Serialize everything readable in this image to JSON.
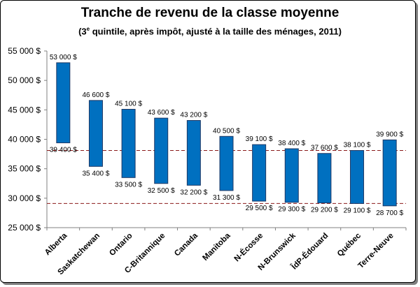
{
  "chart_data": {
    "type": "bar",
    "subtype": "floating-range",
    "title": "Tranche de revenu de la classe moyenne",
    "subtitle": {
      "prefix": "(3",
      "superscript": "e",
      "suffix": " quintile, après impôt, ajusté à la taille des ménages, 2011)"
    },
    "categories": [
      "Alberta",
      "Saskatchewan",
      "Ontario",
      "C-Britannique",
      "Canada",
      "Manitoba",
      "N-Écosse",
      "N-Brunswick",
      "ÎdP-Édouard",
      "Québec",
      "Terre-Neuve"
    ],
    "series": [
      {
        "low": [
          39400,
          35400,
          33500,
          32500,
          32200,
          31300,
          29500,
          29300,
          29200,
          29100,
          28700
        ],
        "high": [
          53000,
          46600,
          45100,
          43600,
          43200,
          40500,
          39100,
          38400,
          37600,
          38100,
          39900
        ]
      }
    ],
    "low_labels": [
      "39 400 $",
      "35 400 $",
      "33 500 $",
      "32 500 $",
      "32 200 $",
      "31 300 $",
      "29 500 $",
      "29 300 $",
      "29 200 $",
      "29 100 $",
      "28 700 $"
    ],
    "high_labels": [
      "53 000 $",
      "46 600 $",
      "45 100 $",
      "43 600 $",
      "43 200 $",
      "40 500 $",
      "39 100 $",
      "38 400 $",
      "37 600 $",
      "38 100 $",
      "39 900 $"
    ],
    "reference_lines": [
      38100,
      29100
    ],
    "ylim": [
      25000,
      55000
    ],
    "yticks": [
      25000,
      30000,
      35000,
      40000,
      45000,
      50000,
      55000
    ],
    "ytick_labels": [
      "25 000 $",
      "30 000 $",
      "35 000 $",
      "40 000 $",
      "45 000 $",
      "50 000 $",
      "55 000 $"
    ],
    "grid": false,
    "colors": {
      "bar_fill": "#0070c0",
      "bar_stroke": "#1f3864",
      "reference_line": "#8b1a1a",
      "axis": "#808080"
    }
  }
}
